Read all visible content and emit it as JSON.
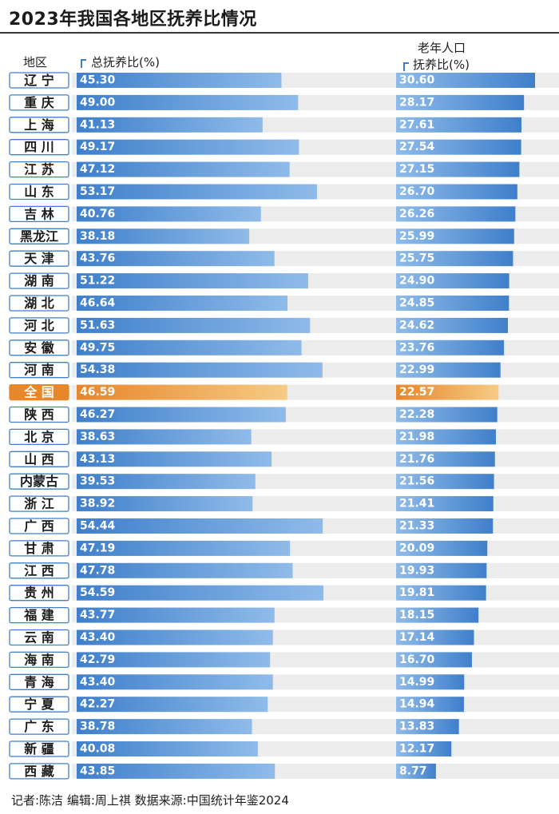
{
  "title": "2023年我国各地区抚养比情况",
  "headers": {
    "region": "地区",
    "total": "总抚养比(%)",
    "elderly_line1": "老年人口",
    "elderly_line2": "抚养比(%)"
  },
  "source": "记者:陈洁   编辑:周上祺   数据来源:中国统计年鉴2024",
  "colors": {
    "bar_blue": "#3f7fcb",
    "bar_blue_light": "#8fbbe9",
    "highlight_orange": "#e8862a",
    "highlight_orange_light": "#f6cb85",
    "row_stripe": "#ececec"
  },
  "chart_data": {
    "type": "bar",
    "orientation": "horizontal",
    "title": "2023年我国各地区抚养比情况",
    "highlight": "全国",
    "categories": [
      "辽 宁",
      "重 庆",
      "上 海",
      "四 川",
      "江 苏",
      "山 东",
      "吉 林",
      "黑龙江",
      "天 津",
      "湖 南",
      "湖 北",
      "河 北",
      "安 徽",
      "河 南",
      "全 国",
      "陕 西",
      "北 京",
      "山 西",
      "内蒙古",
      "浙 江",
      "广 西",
      "甘 肃",
      "江 西",
      "贵 州",
      "福 建",
      "云 南",
      "海 南",
      "青 海",
      "宁 夏",
      "广 东",
      "新 疆",
      "西 藏"
    ],
    "series": [
      {
        "name": "总抚养比(%)",
        "values": [
          45.3,
          49.0,
          41.13,
          49.17,
          47.12,
          53.17,
          40.76,
          38.18,
          43.76,
          51.22,
          46.64,
          51.63,
          49.75,
          54.38,
          46.59,
          46.27,
          38.63,
          43.13,
          39.53,
          38.92,
          54.44,
          47.19,
          47.78,
          54.59,
          43.77,
          43.4,
          42.79,
          43.4,
          42.27,
          38.78,
          40.08,
          43.85
        ],
        "labels": [
          "45.30",
          "49.00",
          "41.13",
          "49.17",
          "47.12",
          "53.17",
          "40.76",
          "38.18",
          "43.76",
          "51.22",
          "46.64",
          "51.63",
          "49.75",
          "54.38",
          "46.59",
          "46.27",
          "38.63",
          "43.13",
          "39.53",
          "38.92",
          "54.44",
          "47.19",
          "47.78",
          "54.59",
          "43.77",
          "43.40",
          "42.79",
          "43.40",
          "42.27",
          "38.78",
          "40.08",
          "43.85"
        ]
      },
      {
        "name": "老年人口抚养比(%)",
        "values": [
          30.6,
          28.17,
          27.61,
          27.54,
          27.15,
          26.7,
          26.26,
          25.99,
          25.75,
          24.9,
          24.85,
          24.62,
          23.76,
          22.99,
          22.57,
          22.28,
          21.98,
          21.76,
          21.56,
          21.41,
          21.33,
          20.09,
          19.93,
          19.81,
          18.15,
          17.14,
          16.7,
          14.99,
          14.94,
          13.83,
          12.17,
          8.77
        ],
        "labels": [
          "30.60",
          "28.17",
          "27.61",
          "27.54",
          "27.15",
          "26.70",
          "26.26",
          "25.99",
          "25.75",
          "24.90",
          "24.85",
          "24.62",
          "23.76",
          "22.99",
          "22.57",
          "22.28",
          "21.98",
          "21.76",
          "21.56",
          "21.41",
          "21.33",
          "20.09",
          "19.93",
          "19.81",
          "18.15",
          "17.14",
          "16.70",
          "14.99",
          "14.94",
          "13.83",
          "12.17",
          "8.77"
        ]
      }
    ]
  }
}
